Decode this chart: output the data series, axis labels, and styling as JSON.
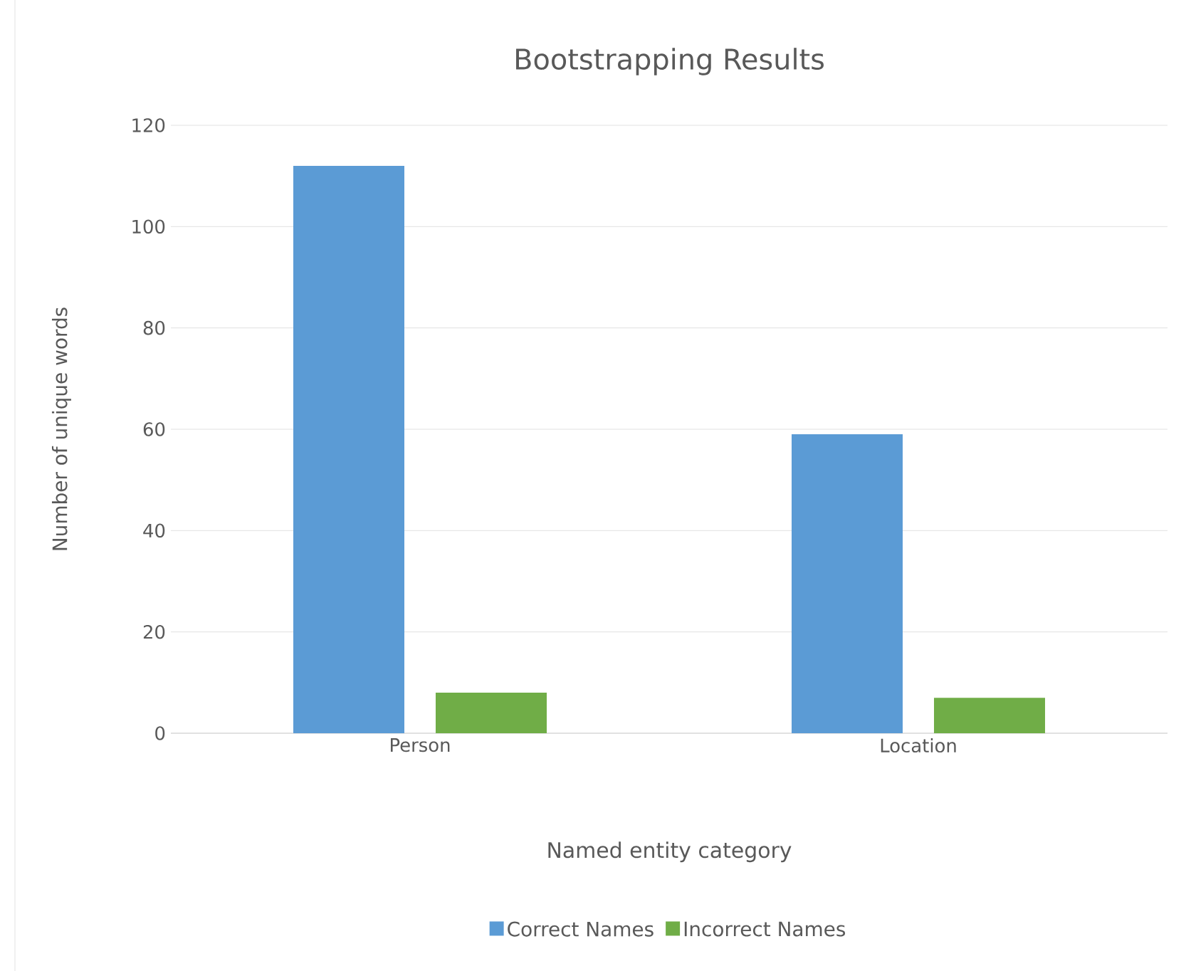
{
  "chart_data": {
    "type": "bar",
    "title": "Bootstrapping Results",
    "xlabel": "Named entity category",
    "ylabel": "Number of unique words",
    "categories": [
      "Person",
      "Location"
    ],
    "series": [
      {
        "name": "Correct Names",
        "color": "#5b9bd5",
        "values": [
          112,
          59
        ]
      },
      {
        "name": "Incorrect Names",
        "color": "#70ad47",
        "values": [
          8,
          7
        ]
      }
    ],
    "ylim": [
      0,
      120
    ],
    "yticks": [
      0,
      20,
      40,
      60,
      80,
      100,
      120
    ],
    "grid": "y",
    "legend": "bottom"
  }
}
